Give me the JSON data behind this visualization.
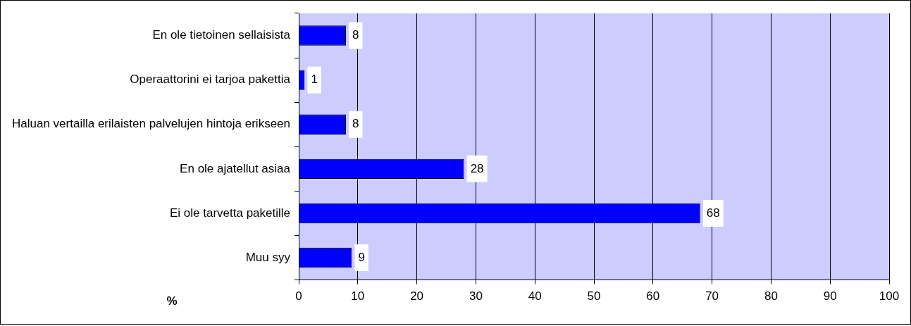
{
  "chart_data": {
    "type": "bar",
    "orientation": "horizontal",
    "xlabel": "%",
    "categories": [
      "En ole tietoinen sellaisista",
      "Operaattorini ei tarjoa pakettia",
      "Haluan vertailla erilaisten palvelujen hintoja erikseen",
      "En ole ajatellut asiaa",
      "Ei ole tarvetta paketille",
      "Muu syy"
    ],
    "values": [
      8,
      1,
      8,
      28,
      68,
      9
    ],
    "color": "#0000ff",
    "xlim": [
      0,
      100
    ],
    "xticks": [
      0,
      10,
      20,
      30,
      40,
      50,
      60,
      70,
      80,
      90,
      100
    ],
    "grid": "x",
    "legend": false,
    "data_labels": true
  }
}
